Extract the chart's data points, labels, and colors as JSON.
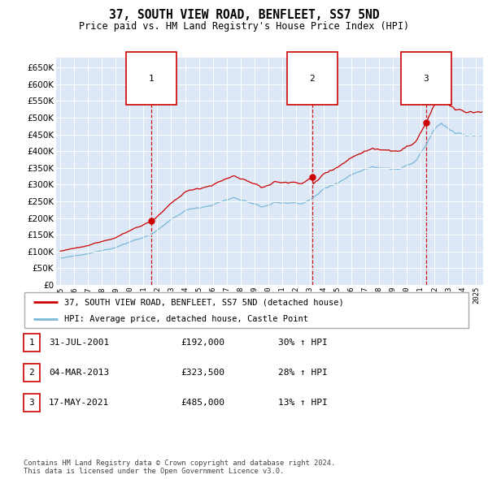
{
  "title": "37, SOUTH VIEW ROAD, BENFLEET, SS7 5ND",
  "subtitle": "Price paid vs. HM Land Registry's House Price Index (HPI)",
  "background_color": "#dce8f5",
  "hpi_color": "#7ab8d9",
  "price_color": "#cc0000",
  "ylim": [
    0,
    680000
  ],
  "yticks": [
    0,
    50000,
    100000,
    150000,
    200000,
    250000,
    300000,
    350000,
    400000,
    450000,
    500000,
    550000,
    600000,
    650000
  ],
  "xlim_start": 1994.7,
  "xlim_end": 2025.5,
  "transactions": [
    {
      "date_num": 2001.58,
      "price": 192000,
      "label": "1"
    },
    {
      "date_num": 2013.17,
      "price": 323500,
      "label": "2"
    },
    {
      "date_num": 2021.38,
      "price": 485000,
      "label": "3"
    }
  ],
  "vline_dates": [
    2001.58,
    2013.17,
    2021.38
  ],
  "legend_entries": [
    "37, SOUTH VIEW ROAD, BENFLEET, SS7 5ND (detached house)",
    "HPI: Average price, detached house, Castle Point"
  ],
  "table_rows": [
    {
      "num": "1",
      "date": "31-JUL-2001",
      "price": "£192,000",
      "change": "30% ↑ HPI"
    },
    {
      "num": "2",
      "date": "04-MAR-2013",
      "price": "£323,500",
      "change": "28% ↑ HPI"
    },
    {
      "num": "3",
      "date": "17-MAY-2021",
      "price": "£485,000",
      "change": "13% ↑ HPI"
    }
  ],
  "footnote": "Contains HM Land Registry data © Crown copyright and database right 2024.\nThis data is licensed under the Open Government Licence v3.0.",
  "xtick_years": [
    1995,
    1996,
    1997,
    1998,
    1999,
    2000,
    2001,
    2002,
    2003,
    2004,
    2005,
    2006,
    2007,
    2008,
    2009,
    2010,
    2011,
    2012,
    2013,
    2014,
    2015,
    2016,
    2017,
    2018,
    2019,
    2020,
    2021,
    2022,
    2023,
    2024,
    2025
  ]
}
